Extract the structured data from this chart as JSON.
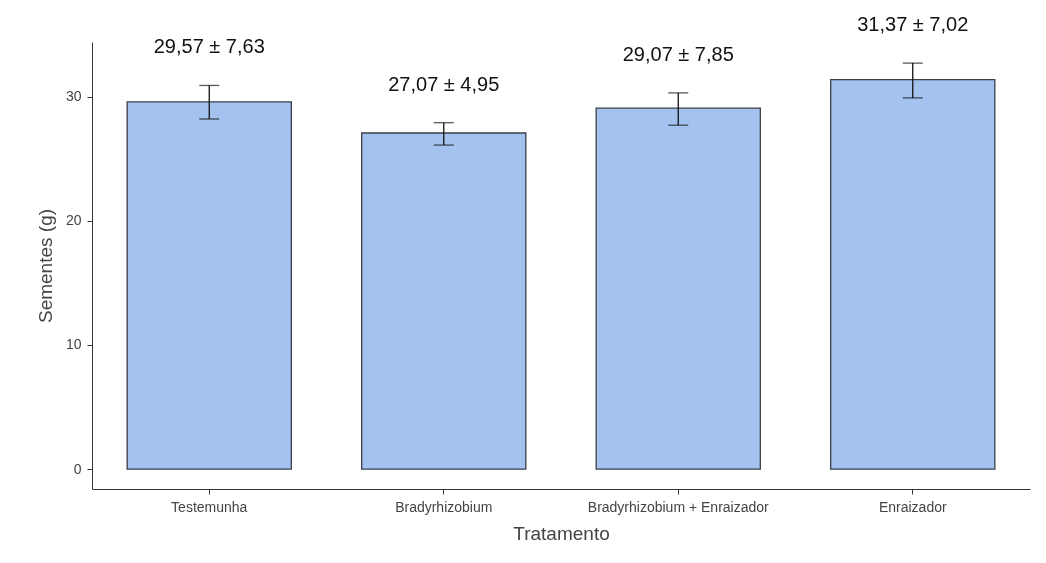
{
  "chart_data": {
    "type": "bar",
    "xlabel": "Tratamento",
    "ylabel": "Sementes (g)",
    "categories": [
      "Testemunha",
      "Bradyrhizobium",
      "Bradyrhizobium + Enraizador",
      "Enraizador"
    ],
    "values": [
      29.57,
      27.07,
      29.07,
      31.37
    ],
    "errors": [
      [
        28.2,
        30.9
      ],
      [
        26.1,
        27.9
      ],
      [
        27.7,
        30.3
      ],
      [
        29.9,
        32.7
      ]
    ],
    "value_labels": [
      "29,57 ± 7,63",
      "27,07 ± 4,95",
      "29,07 ± 7,85",
      "31,37 ± 7,02"
    ],
    "color": "#a4c2f0",
    "ylim": [
      -1.6,
      34.4
    ],
    "yticks": [
      0,
      10,
      20,
      30
    ],
    "grid": false
  }
}
